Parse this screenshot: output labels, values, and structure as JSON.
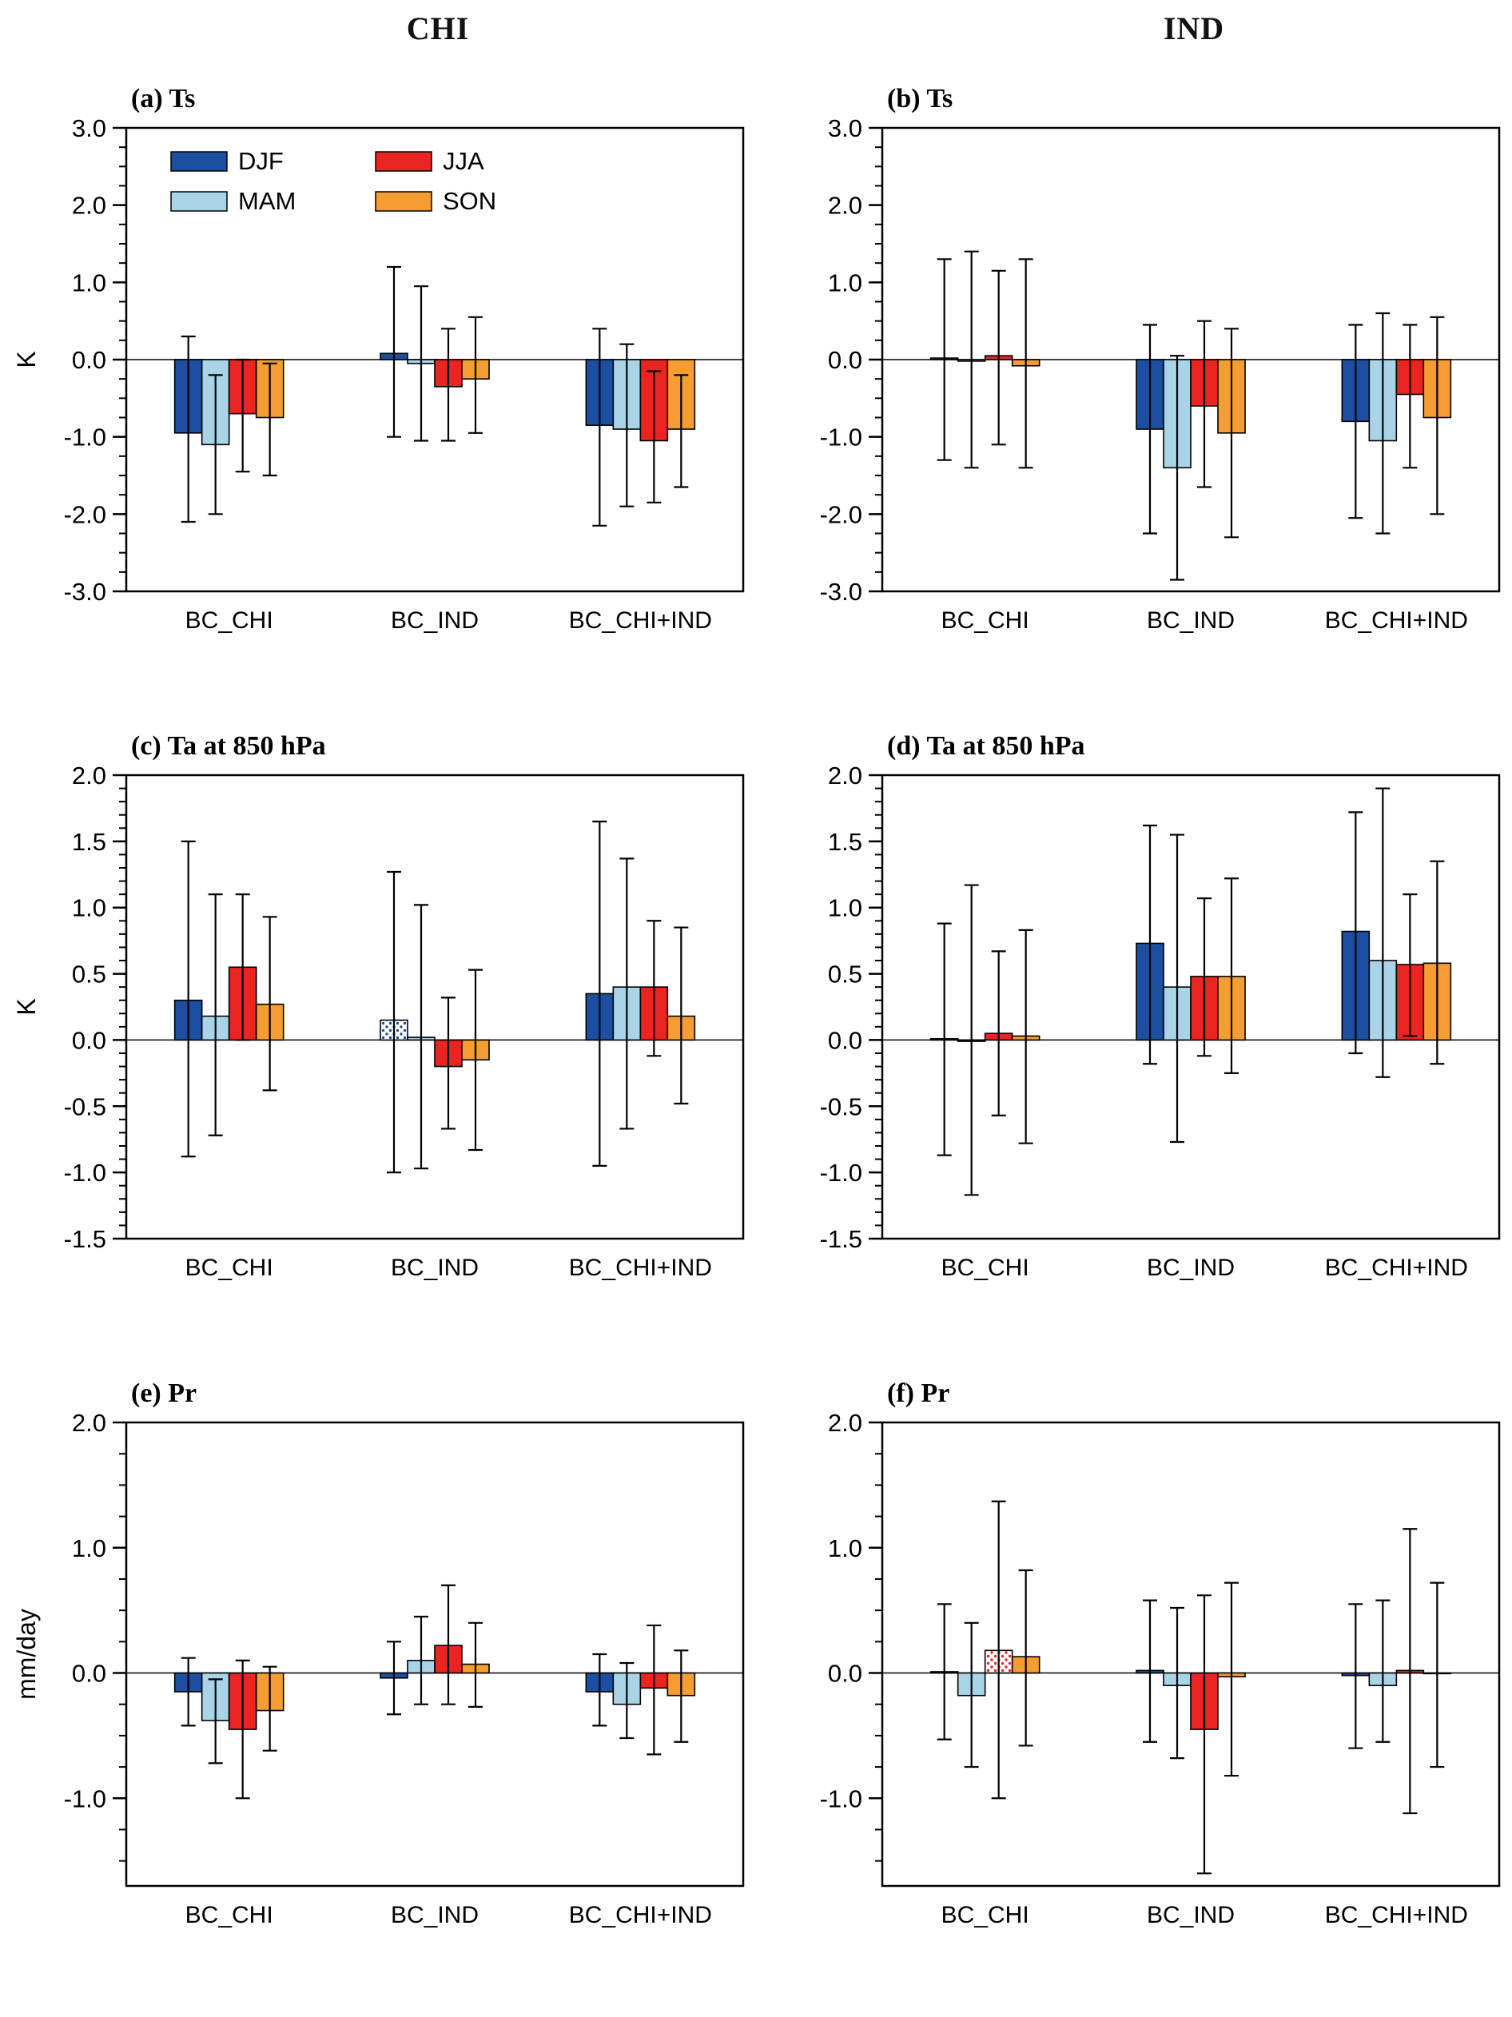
{
  "page": {
    "col_titles": [
      "CHI",
      "IND"
    ]
  },
  "style": {
    "series_colors": {
      "DJF": "#1c4fa1",
      "MAM": "#a9d4e8",
      "JJA": "#ea2420",
      "SON": "#f59d33"
    },
    "axis_color": "#000000",
    "background": "#ffffff"
  },
  "chart_data": [
    {
      "type": "bar",
      "panel": "a",
      "title": "(a) Ts",
      "ylabel": "K",
      "ylim": [
        -3.0,
        3.0
      ],
      "minor_step": 0.25,
      "ytick_vals": [
        3,
        2,
        1,
        0,
        -1,
        -2,
        -3
      ],
      "ytick_labels": [
        "3.0",
        "2.0",
        "1.0",
        "0.0",
        "-1.0",
        "-2.0",
        "-3.0"
      ],
      "categories": [
        "BC_CHI",
        "BC_IND",
        "BC_CHI+IND"
      ],
      "legend": true,
      "series": [
        {
          "name": "DJF",
          "values": [
            -0.95,
            0.08,
            -0.85
          ],
          "err_lo": [
            -2.1,
            -1.0,
            -2.15
          ],
          "err_hi": [
            0.3,
            1.2,
            0.4
          ]
        },
        {
          "name": "MAM",
          "values": [
            -1.1,
            -0.05,
            -0.9
          ],
          "err_lo": [
            -2.0,
            -1.05,
            -1.9
          ],
          "err_hi": [
            -0.2,
            0.95,
            0.2
          ]
        },
        {
          "name": "JJA",
          "values": [
            -0.7,
            -0.35,
            -1.05
          ],
          "err_lo": [
            -1.45,
            -1.05,
            -1.85
          ],
          "err_hi": [
            0.0,
            0.4,
            -0.15
          ]
        },
        {
          "name": "SON",
          "values": [
            -0.75,
            -0.25,
            -0.9
          ],
          "err_lo": [
            -1.5,
            -0.95,
            -1.65
          ],
          "err_hi": [
            -0.05,
            0.55,
            -0.2
          ]
        }
      ]
    },
    {
      "type": "bar",
      "panel": "b",
      "title": "(b) Ts",
      "ylabel": "",
      "ylim": [
        -3.0,
        3.0
      ],
      "minor_step": 0.25,
      "ytick_vals": [
        3,
        2,
        1,
        0,
        -1,
        -2,
        -3
      ],
      "ytick_labels": [
        "3.0",
        "2.0",
        "1.0",
        "0.0",
        "-1.0",
        "-2.0",
        "-3.0"
      ],
      "categories": [
        "BC_CHI",
        "BC_IND",
        "BC_CHI+IND"
      ],
      "legend": false,
      "series": [
        {
          "name": "DJF",
          "values": [
            0.02,
            -0.9,
            -0.8
          ],
          "err_lo": [
            -1.3,
            -2.25,
            -2.05
          ],
          "err_hi": [
            1.3,
            0.45,
            0.45
          ]
        },
        {
          "name": "MAM",
          "values": [
            -0.02,
            -1.4,
            -1.05
          ],
          "err_lo": [
            -1.4,
            -2.85,
            -2.25
          ],
          "err_hi": [
            1.4,
            0.05,
            0.6
          ]
        },
        {
          "name": "JJA",
          "values": [
            0.05,
            -0.6,
            -0.45
          ],
          "err_lo": [
            -1.1,
            -1.65,
            -1.4
          ],
          "err_hi": [
            1.15,
            0.5,
            0.45
          ]
        },
        {
          "name": "SON",
          "values": [
            -0.08,
            -0.95,
            -0.75
          ],
          "err_lo": [
            -1.4,
            -2.3,
            -2.0
          ],
          "err_hi": [
            1.3,
            0.4,
            0.55
          ]
        }
      ]
    },
    {
      "type": "bar",
      "panel": "c",
      "title": "(c) Ta at 850 hPa",
      "ylabel": "K",
      "ylim": [
        -1.5,
        2.0
      ],
      "minor_step": 0.1,
      "ytick_vals": [
        2,
        1.5,
        1,
        0.5,
        0,
        -0.5,
        -1,
        -1.5
      ],
      "ytick_labels": [
        "2.0",
        "1.5",
        "1.0",
        "0.5",
        "0.0",
        "-0.5",
        "-1.0",
        "-1.5"
      ],
      "categories": [
        "BC_CHI",
        "BC_IND",
        "BC_CHI+IND"
      ],
      "legend": false,
      "series": [
        {
          "name": "DJF",
          "values": [
            0.3,
            0.15,
            0.35
          ],
          "err_lo": [
            -0.88,
            -1.0,
            -0.95
          ],
          "err_hi": [
            1.5,
            1.27,
            1.65
          ],
          "stipple": [
            false,
            true,
            false
          ]
        },
        {
          "name": "MAM",
          "values": [
            0.18,
            0.02,
            0.4
          ],
          "err_lo": [
            -0.72,
            -0.97,
            -0.67
          ],
          "err_hi": [
            1.1,
            1.02,
            1.37
          ]
        },
        {
          "name": "JJA",
          "values": [
            0.55,
            -0.2,
            0.4
          ],
          "err_lo": [
            0.0,
            -0.67,
            -0.12
          ],
          "err_hi": [
            1.1,
            0.32,
            0.9
          ]
        },
        {
          "name": "SON",
          "values": [
            0.27,
            -0.15,
            0.18
          ],
          "err_lo": [
            -0.38,
            -0.83,
            -0.48
          ],
          "err_hi": [
            0.93,
            0.53,
            0.85
          ]
        }
      ]
    },
    {
      "type": "bar",
      "panel": "d",
      "title": "(d) Ta at 850 hPa",
      "ylabel": "",
      "ylim": [
        -1.5,
        2.0
      ],
      "minor_step": 0.1,
      "ytick_vals": [
        2,
        1.5,
        1,
        0.5,
        0,
        -0.5,
        -1,
        -1.5
      ],
      "ytick_labels": [
        "2.0",
        "1.5",
        "1.0",
        "0.5",
        "0.0",
        "-0.5",
        "-1.0",
        "-1.5"
      ],
      "categories": [
        "BC_CHI",
        "BC_IND",
        "BC_CHI+IND"
      ],
      "legend": false,
      "series": [
        {
          "name": "DJF",
          "values": [
            0.01,
            0.73,
            0.82
          ],
          "err_lo": [
            -0.87,
            -0.18,
            -0.1
          ],
          "err_hi": [
            0.88,
            1.62,
            1.72
          ]
        },
        {
          "name": "MAM",
          "values": [
            -0.01,
            0.4,
            0.6
          ],
          "err_lo": [
            -1.17,
            -0.77,
            -0.28
          ],
          "err_hi": [
            1.17,
            1.55,
            1.9
          ]
        },
        {
          "name": "JJA",
          "values": [
            0.05,
            0.48,
            0.57
          ],
          "err_lo": [
            -0.57,
            -0.12,
            0.03
          ],
          "err_hi": [
            0.67,
            1.07,
            1.1
          ]
        },
        {
          "name": "SON",
          "values": [
            0.03,
            0.48,
            0.58
          ],
          "err_lo": [
            -0.78,
            -0.25,
            -0.18
          ],
          "err_hi": [
            0.83,
            1.22,
            1.35
          ]
        }
      ]
    },
    {
      "type": "bar",
      "panel": "e",
      "title": "(e) Pr",
      "ylabel": "mm/day",
      "ylim": [
        -1.7,
        2.0
      ],
      "minor_step": 0.25,
      "ytick_vals": [
        2,
        1,
        0,
        -1
      ],
      "ytick_labels": [
        "2.0",
        "1.0",
        "0.0",
        "-1.0"
      ],
      "categories": [
        "BC_CHI",
        "BC_IND",
        "BC_CHI+IND"
      ],
      "legend": false,
      "series": [
        {
          "name": "DJF",
          "values": [
            -0.15,
            -0.04,
            -0.15
          ],
          "err_lo": [
            -0.42,
            -0.33,
            -0.42
          ],
          "err_hi": [
            0.12,
            0.25,
            0.15
          ]
        },
        {
          "name": "MAM",
          "values": [
            -0.38,
            0.1,
            -0.25
          ],
          "err_lo": [
            -0.72,
            -0.25,
            -0.52
          ],
          "err_hi": [
            -0.05,
            0.45,
            0.08
          ]
        },
        {
          "name": "JJA",
          "values": [
            -0.45,
            0.22,
            -0.12
          ],
          "err_lo": [
            -1.0,
            -0.25,
            -0.65
          ],
          "err_hi": [
            0.1,
            0.7,
            0.38
          ]
        },
        {
          "name": "SON",
          "values": [
            -0.3,
            0.07,
            -0.18
          ],
          "err_lo": [
            -0.62,
            -0.27,
            -0.55
          ],
          "err_hi": [
            0.05,
            0.4,
            0.18
          ]
        }
      ]
    },
    {
      "type": "bar",
      "panel": "f",
      "title": "(f) Pr",
      "ylabel": "",
      "ylim": [
        -1.7,
        2.0
      ],
      "minor_step": 0.25,
      "ytick_vals": [
        2,
        1,
        0,
        -1
      ],
      "ytick_labels": [
        "2.0",
        "1.0",
        "0.0",
        "-1.0"
      ],
      "categories": [
        "BC_CHI",
        "BC_IND",
        "BC_CHI+IND"
      ],
      "legend": false,
      "series": [
        {
          "name": "DJF",
          "values": [
            0.01,
            0.02,
            -0.02
          ],
          "err_lo": [
            -0.53,
            -0.55,
            -0.6
          ],
          "err_hi": [
            0.55,
            0.58,
            0.55
          ]
        },
        {
          "name": "MAM",
          "values": [
            -0.18,
            -0.1,
            -0.1
          ],
          "err_lo": [
            -0.75,
            -0.68,
            -0.55
          ],
          "err_hi": [
            0.4,
            0.52,
            0.58
          ]
        },
        {
          "name": "JJA",
          "values": [
            0.18,
            -0.45,
            0.02
          ],
          "err_lo": [
            -1.0,
            -1.6,
            -1.12
          ],
          "err_hi": [
            1.37,
            0.62,
            1.15
          ],
          "stipple": [
            true,
            false,
            false
          ]
        },
        {
          "name": "SON",
          "values": [
            0.13,
            -0.03,
            0.0
          ],
          "err_lo": [
            -0.58,
            -0.82,
            -0.75
          ],
          "err_hi": [
            0.82,
            0.72,
            0.72
          ]
        }
      ]
    }
  ]
}
